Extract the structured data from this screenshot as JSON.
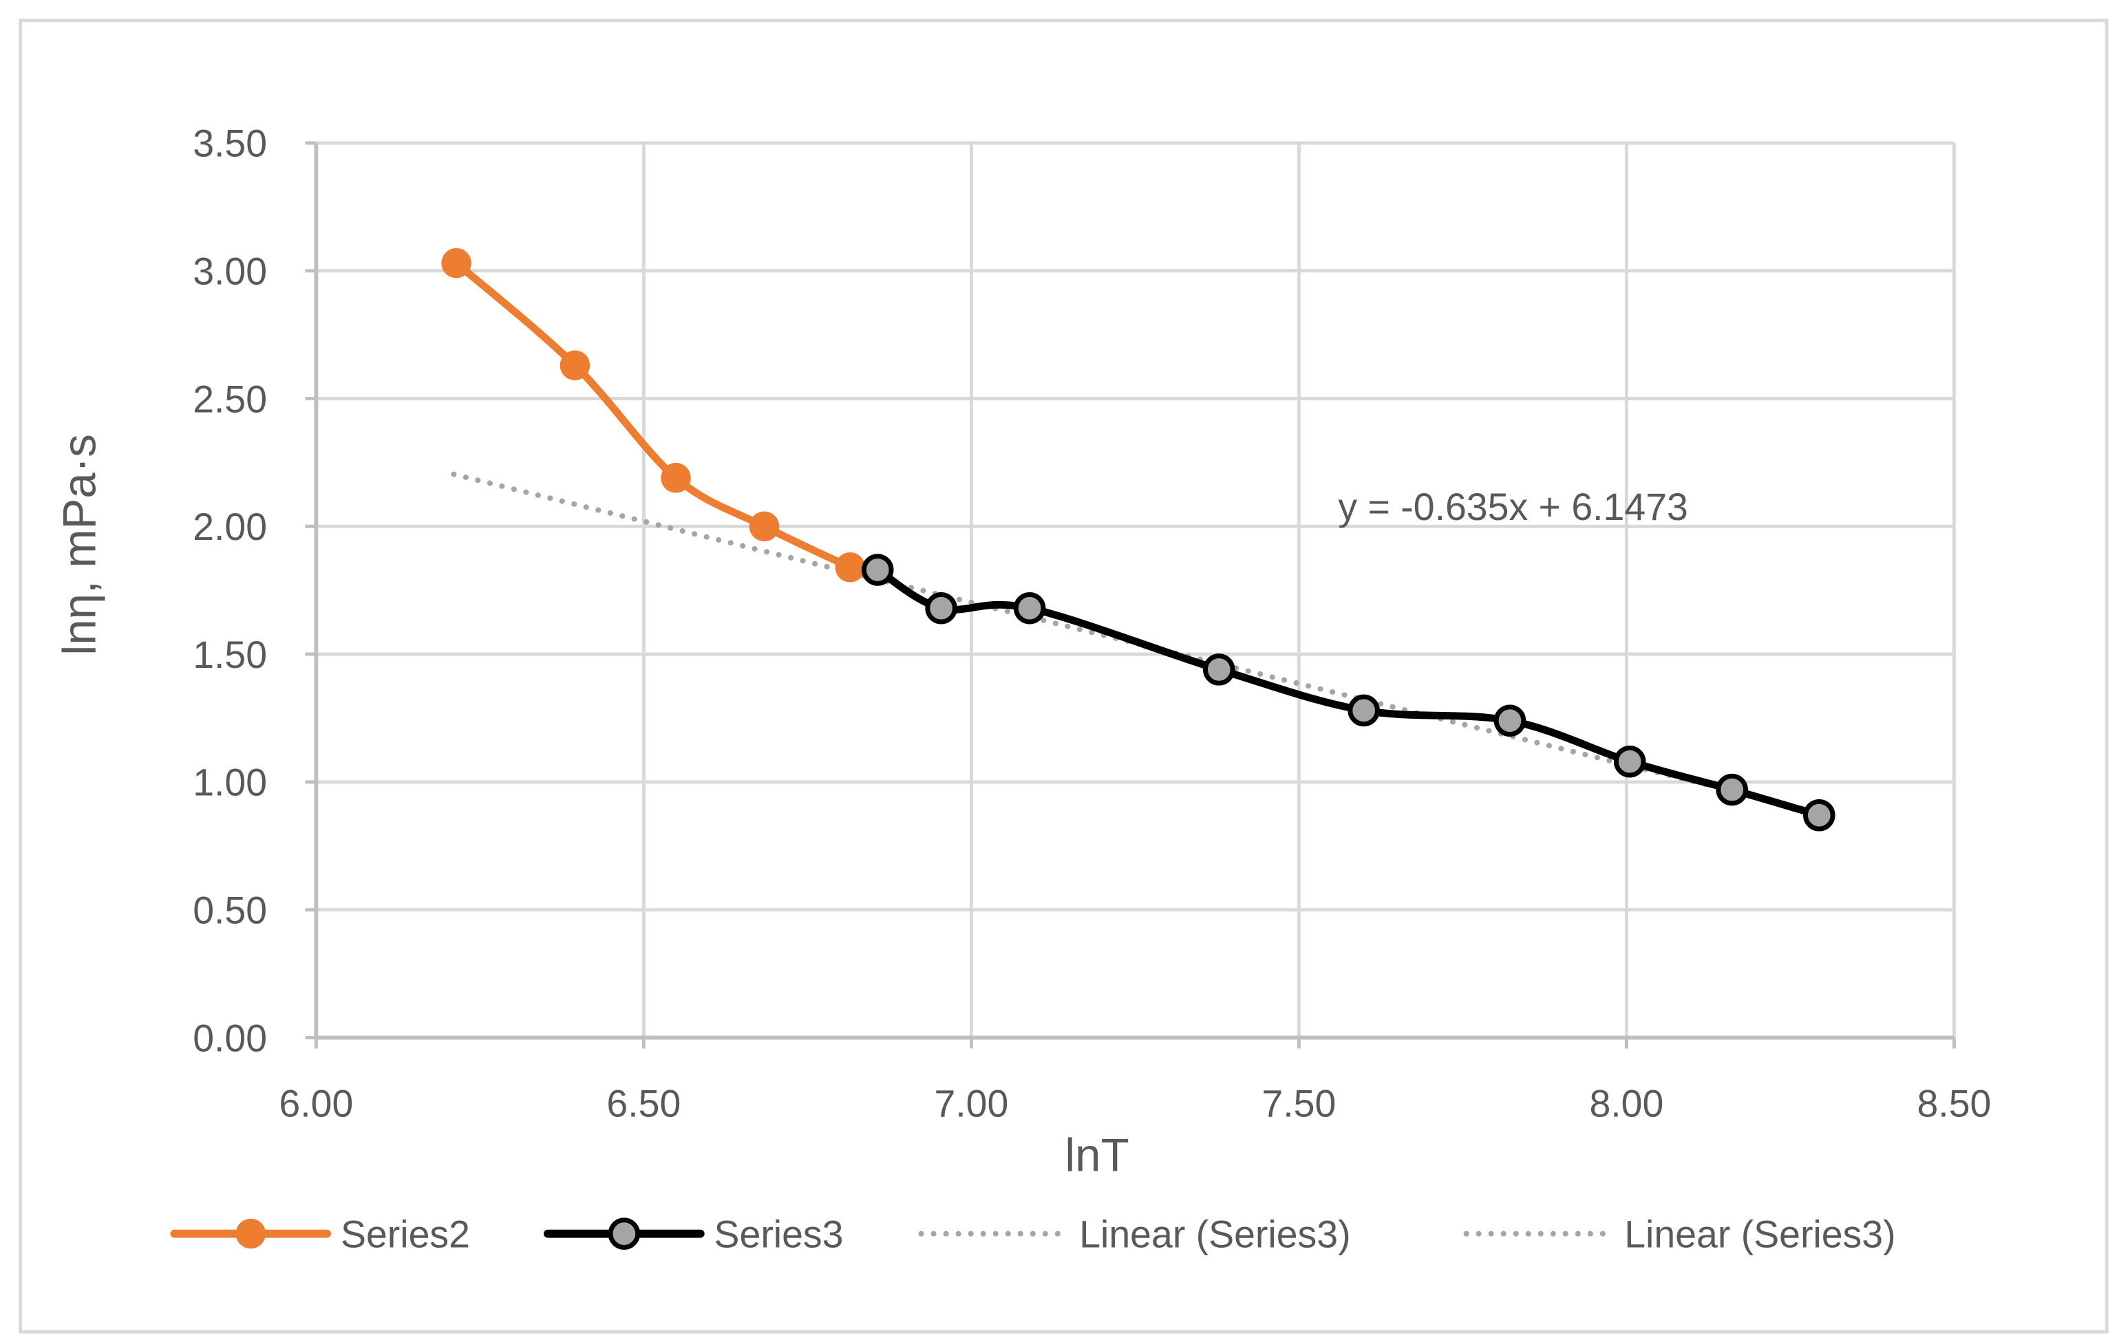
{
  "chart_data": {
    "type": "line",
    "title": "",
    "xlabel": "lnT",
    "ylabel": "lnη, mPa·s",
    "xlim": [
      6.0,
      8.5
    ],
    "ylim": [
      0.0,
      3.5
    ],
    "x_ticks": [
      "6.00",
      "6.50",
      "7.00",
      "7.50",
      "8.00",
      "8.50"
    ],
    "y_ticks": [
      "0.00",
      "0.50",
      "1.00",
      "1.50",
      "2.00",
      "2.50",
      "3.00",
      "3.50"
    ],
    "grid": true,
    "legend_position": "bottom",
    "series": [
      {
        "name": "Series2",
        "color": "#ED7D31",
        "marker": "filled-circle",
        "smooth": true,
        "x": [
          6.214,
          6.395,
          6.549,
          6.684,
          6.815
        ],
        "y": [
          3.03,
          2.63,
          2.19,
          2.0,
          1.84
        ]
      },
      {
        "name": "Series3",
        "color": "#000000",
        "marker_fill": "#A5A5A5",
        "marker": "gray-circle-black-outline",
        "smooth": true,
        "x": [
          6.857,
          6.954,
          7.089,
          7.378,
          7.599,
          7.822,
          8.005,
          8.161,
          8.294
        ],
        "y": [
          1.83,
          1.68,
          1.68,
          1.44,
          1.28,
          1.24,
          1.08,
          0.97,
          0.87
        ]
      }
    ],
    "trendlines": [
      {
        "name": "Linear (Series3)",
        "type": "linear",
        "slope": -0.635,
        "intercept": 6.1473,
        "x_range": [
          6.21,
          8.29
        ],
        "color": "#A5A5A5",
        "style": "dotted"
      }
    ],
    "annotations": [
      {
        "text": "y = -0.635x + 6.1473",
        "x": 7.55,
        "y": 2.0
      }
    ],
    "legend": [
      {
        "label": "Series2",
        "kind": "orange-line-marker"
      },
      {
        "label": "Series3",
        "kind": "black-line-gray-marker"
      },
      {
        "label": "Linear (Series3)",
        "kind": "gray-dotted"
      },
      {
        "label": "Linear (Series3)",
        "kind": "gray-dotted"
      }
    ]
  },
  "colors": {
    "series2": "#ED7D31",
    "series3_line": "#000000",
    "series3_marker": "#A5A5A5",
    "trend": "#A5A5A5",
    "grid": "#D9D9D9",
    "axis": "#BFBFBF",
    "text": "#595959",
    "border": "#D9D9D9"
  }
}
